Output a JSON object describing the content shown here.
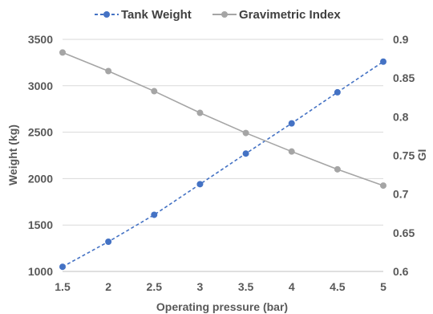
{
  "chart_data": {
    "type": "line",
    "x": [
      1.5,
      2,
      2.5,
      3,
      3.5,
      4,
      4.5,
      5
    ],
    "xlabel": "Operating pressure (bar)",
    "xlim": [
      1.5,
      5
    ],
    "xticks": [
      "1.5",
      "2",
      "2.5",
      "3",
      "3.5",
      "4",
      "4.5",
      "5"
    ],
    "ylabel": "Weight (kg)",
    "ylim": [
      1000,
      3500
    ],
    "yticks": [
      "1000",
      "1500",
      "2000",
      "2500",
      "3000",
      "3500"
    ],
    "y2label": "GI",
    "y2lim": [
      0.6,
      0.9
    ],
    "y2ticks": [
      "0.6",
      "0.65",
      "0.7",
      "0.75",
      "0.8",
      "0.85",
      "0.9"
    ],
    "grid": "horizontal",
    "legend_position": "top",
    "series": [
      {
        "name": "Tank Weight",
        "axis": "left",
        "values": [
          1050,
          1320,
          1610,
          1940,
          2270,
          2595,
          2930,
          3260
        ],
        "color": "#4472C4",
        "line_style": "dashed"
      },
      {
        "name": "Gravimetric Index",
        "axis": "right",
        "values": [
          0.883,
          0.859,
          0.833,
          0.805,
          0.779,
          0.755,
          0.732,
          0.711
        ],
        "color": "#A5A5A5",
        "line_style": "solid"
      }
    ]
  }
}
